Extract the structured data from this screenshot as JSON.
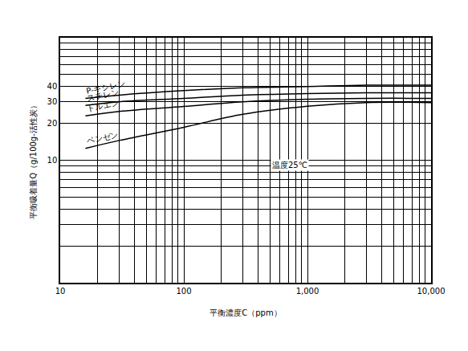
{
  "chart_data": {
    "type": "line",
    "x_label": "平衡濃度C（ppm）",
    "y_label": "平衡吸着量Q（g/100g-活性炭）",
    "annotation": "温度25℃",
    "log": true,
    "grid": true,
    "x": [
      16,
      30,
      100,
      300,
      1000,
      3000,
      10000
    ],
    "series": [
      {
        "name": "P-キシレン",
        "color": "#000000",
        "values": [
          32,
          34,
          37,
          39,
          40,
          41,
          41
        ]
      },
      {
        "name": "スチレン",
        "color": "#000000",
        "values": [
          28,
          30,
          32,
          34,
          35,
          35.5,
          35.5
        ]
      },
      {
        "name": "トルエン",
        "color": "#000000",
        "values": [
          23,
          25,
          27.5,
          30,
          31.5,
          32,
          32
        ]
      },
      {
        "name": "ベンゼン",
        "color": "#000000",
        "values": [
          12.5,
          14.5,
          18.6,
          23.7,
          27.6,
          29.6,
          29.6
        ]
      }
    ],
    "xlim": [
      10,
      10000
    ],
    "xticks": [
      10,
      100,
      {
        "value": 1000,
        "label": "1,000"
      },
      {
        "value": 10000,
        "label": "10,000"
      }
    ],
    "ylim": [
      1,
      100
    ],
    "yticks": [
      10,
      20,
      30,
      40
    ]
  }
}
